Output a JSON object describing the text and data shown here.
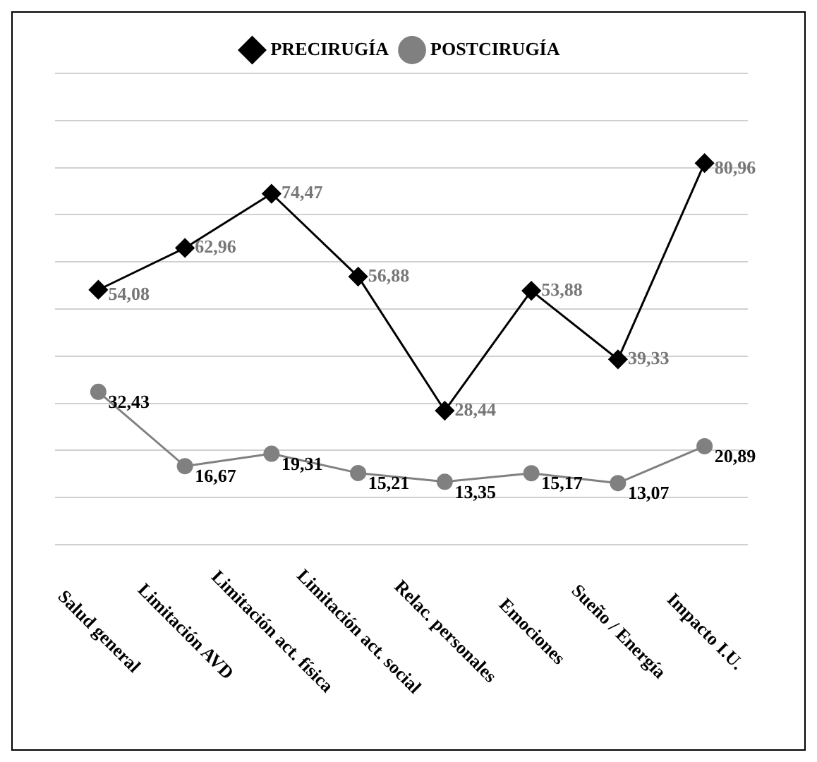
{
  "chart_data": {
    "type": "line",
    "categories": [
      "Salud general",
      "Limitación AVD",
      "Limitación act. física",
      "Limitación act. social",
      "Relac. personales",
      "Emociones",
      "Sueño / Energía",
      "Impacto I.U."
    ],
    "series": [
      {
        "name": "PRECIRUGÍA",
        "color": "#000000",
        "marker": "diamond",
        "values": [
          54.08,
          62.96,
          74.47,
          56.88,
          28.44,
          53.88,
          39.33,
          80.96
        ],
        "value_labels": [
          "54,08",
          "62,96",
          "74,47",
          "56,88",
          "28,44",
          "53,88",
          "39,33",
          "80,96"
        ]
      },
      {
        "name": "POSTCIRUGÍA",
        "color": "#808080",
        "marker": "circle",
        "values": [
          32.43,
          16.67,
          19.31,
          15.21,
          13.35,
          15.17,
          13.07,
          20.89
        ],
        "value_labels": [
          "32,43",
          "16,67",
          "19,31",
          "15,21",
          "13,35",
          "15,17",
          "13,07",
          "20,89"
        ]
      }
    ],
    "ylim": [
      0,
      100
    ],
    "yticks": [
      {
        "value": 0,
        "label": null
      },
      {
        "value": 10,
        "label": null
      },
      {
        "value": 20,
        "label": null
      },
      {
        "value": 30,
        "label": null
      },
      {
        "value": 40,
        "label": null
      },
      {
        "value": 50,
        "label": null
      },
      {
        "value": 60,
        "label": null
      },
      {
        "value": 70,
        "label": null
      },
      {
        "value": 80,
        "label": null
      },
      {
        "value": 90,
        "label": null
      },
      {
        "value": 100,
        "label": null
      }
    ],
    "grid": "y",
    "legend": "top",
    "tick_labels": "x",
    "line_style": "solid"
  }
}
